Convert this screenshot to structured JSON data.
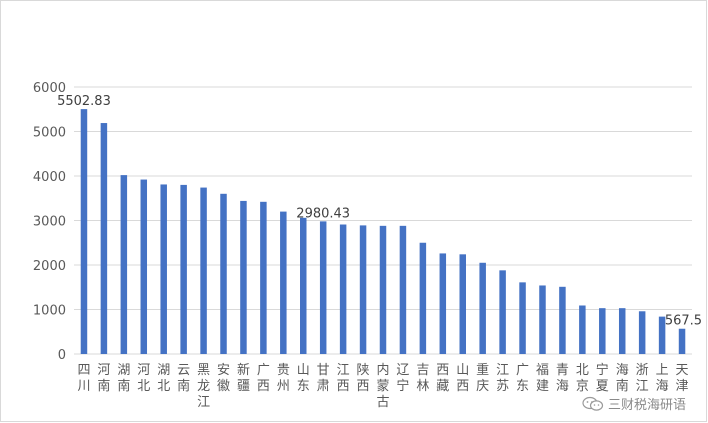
{
  "chart_data": {
    "type": "bar",
    "title": "",
    "xlabel": "",
    "ylabel": "",
    "ylim": [
      0,
      6000
    ],
    "yticks": [
      0,
      1000,
      2000,
      3000,
      4000,
      5000,
      6000
    ],
    "grid": true,
    "legend": "none",
    "bar_color": "#4472c4",
    "categories": [
      "四川",
      "河南",
      "湖南",
      "河北",
      "湖北",
      "云南",
      "黑龙江",
      "安徽",
      "新疆",
      "广西",
      "贵州",
      "山东",
      "甘肃",
      "江西",
      "陕西",
      "内蒙古",
      "辽宁",
      "吉林",
      "西藏",
      "山西",
      "重庆",
      "江苏",
      "广东",
      "福建",
      "青海",
      "北京",
      "宁夏",
      "海南",
      "浙江",
      "上海",
      "天津"
    ],
    "values": [
      5502.83,
      5190,
      4020,
      3920,
      3810,
      3800,
      3740,
      3600,
      3440,
      3420,
      3200,
      3060,
      2980.43,
      2910,
      2890,
      2880,
      2880,
      2500,
      2260,
      2240,
      2050,
      1880,
      1610,
      1540,
      1510,
      1090,
      1030,
      1030,
      960,
      840,
      567.5
    ],
    "data_labels": [
      {
        "index": 0,
        "text": "5502.83"
      },
      {
        "index": 12,
        "text": "2980.43"
      },
      {
        "index": 30,
        "text": "567.5"
      }
    ]
  },
  "watermark": {
    "text": "三财税海研语",
    "icon": "wechat-icon"
  }
}
